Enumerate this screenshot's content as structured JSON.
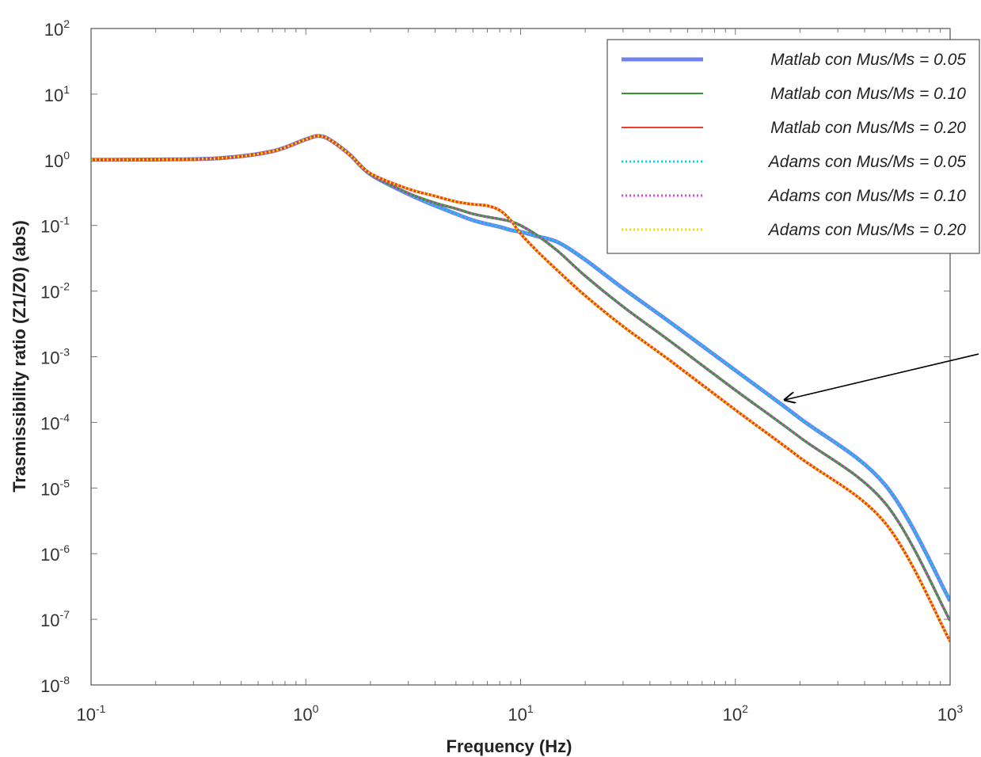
{
  "chart_data": {
    "type": "line",
    "title": "",
    "xlabel": "Frequency  (Hz)",
    "ylabel": "Trasmissibility ratio  (Z1/Z0) (abs)",
    "x_scale": "log",
    "y_scale": "log",
    "xlim": [
      0.1,
      1000
    ],
    "ylim": [
      1e-08,
      100
    ],
    "x_ticks": [
      {
        "base": "10",
        "exp": "-1"
      },
      {
        "base": "10",
        "exp": "0"
      },
      {
        "base": "10",
        "exp": "1"
      },
      {
        "base": "10",
        "exp": "2"
      },
      {
        "base": "10",
        "exp": "3"
      }
    ],
    "y_ticks": [
      {
        "base": "10",
        "exp": "-8"
      },
      {
        "base": "10",
        "exp": "-7"
      },
      {
        "base": "10",
        "exp": "-6"
      },
      {
        "base": "10",
        "exp": "-5"
      },
      {
        "base": "10",
        "exp": "-4"
      },
      {
        "base": "10",
        "exp": "-3"
      },
      {
        "base": "10",
        "exp": "-2"
      },
      {
        "base": "10",
        "exp": "-1"
      },
      {
        "base": "10",
        "exp": "0"
      },
      {
        "base": "10",
        "exp": "1"
      },
      {
        "base": "10",
        "exp": "2"
      }
    ],
    "grid": false,
    "legend_position": "top-right",
    "x": [
      0.1,
      0.2,
      0.4,
      0.7,
      1.0,
      1.15,
      1.3,
      1.6,
      2.0,
      3.0,
      4.0,
      5.0,
      6.0,
      7.0,
      8.0,
      9.0,
      10.0,
      12.0,
      15.0,
      20.0,
      30.0,
      50.0,
      100.0,
      200.0,
      500.0,
      1000.0
    ],
    "series": [
      {
        "name": "Matlab con Mus/Ms = 0.05",
        "color": "#6f82ee",
        "style": "solid",
        "values": [
          1.0,
          1.01,
          1.06,
          1.35,
          2.05,
          2.3,
          2.0,
          1.2,
          0.6,
          0.3,
          0.2,
          0.15,
          0.12,
          0.105,
          0.095,
          0.085,
          0.08,
          0.068,
          0.055,
          0.03,
          0.011,
          0.0033,
          0.00062,
          0.000115,
          1.1e-05,
          1.9e-07
        ]
      },
      {
        "name": "Matlab con Mus/Ms = 0.10",
        "color": "#2e9a2e",
        "style": "solid",
        "values": [
          1.0,
          1.01,
          1.06,
          1.35,
          2.05,
          2.3,
          2.0,
          1.2,
          0.6,
          0.31,
          0.22,
          0.18,
          0.15,
          0.135,
          0.125,
          0.115,
          0.1,
          0.07,
          0.04,
          0.017,
          0.0058,
          0.0017,
          0.00031,
          5.9e-05,
          5.8e-06,
          9.5e-08
        ]
      },
      {
        "name": "Matlab con Mus/Ms = 0.20",
        "color": "#ee3a2a",
        "style": "solid",
        "values": [
          1.0,
          1.01,
          1.06,
          1.35,
          2.05,
          2.3,
          2.0,
          1.2,
          0.62,
          0.36,
          0.28,
          0.23,
          0.21,
          0.2,
          0.17,
          0.12,
          0.075,
          0.04,
          0.02,
          0.0085,
          0.0029,
          0.00086,
          0.000155,
          2.9e-05,
          2.9e-06,
          4.6e-08
        ]
      },
      {
        "name": "Adams con Mus/Ms = 0.05",
        "color": "#00d8e8",
        "style": "dotted",
        "values": [
          1.0,
          1.01,
          1.06,
          1.35,
          2.05,
          2.3,
          2.0,
          1.2,
          0.6,
          0.3,
          0.2,
          0.15,
          0.12,
          0.105,
          0.095,
          0.085,
          0.08,
          0.068,
          0.055,
          0.03,
          0.011,
          0.0033,
          0.00062,
          0.000115,
          1.1e-05,
          1.9e-07
        ]
      },
      {
        "name": "Adams con Mus/Ms = 0.10",
        "color": "#e040e0",
        "style": "dotted",
        "values": [
          1.0,
          1.01,
          1.06,
          1.35,
          2.05,
          2.3,
          2.0,
          1.2,
          0.6,
          0.31,
          0.22,
          0.18,
          0.15,
          0.135,
          0.125,
          0.115,
          0.1,
          0.07,
          0.04,
          0.017,
          0.0058,
          0.0017,
          0.00031,
          5.9e-05,
          5.8e-06,
          9.5e-08
        ]
      },
      {
        "name": "Adams con Mus/Ms = 0.20",
        "color": "#f0e000",
        "style": "dotted",
        "values": [
          1.0,
          1.01,
          1.06,
          1.35,
          2.05,
          2.3,
          2.0,
          1.2,
          0.62,
          0.36,
          0.28,
          0.23,
          0.21,
          0.2,
          0.17,
          0.12,
          0.075,
          0.04,
          0.02,
          0.0085,
          0.0029,
          0.00086,
          0.000155,
          2.9e-05,
          2.9e-06,
          4.6e-08
        ]
      }
    ],
    "annotation_arrow": {
      "from": [
        1200,
        0.0011
      ],
      "to": [
        170,
        0.00022
      ],
      "color": "#000000"
    }
  }
}
